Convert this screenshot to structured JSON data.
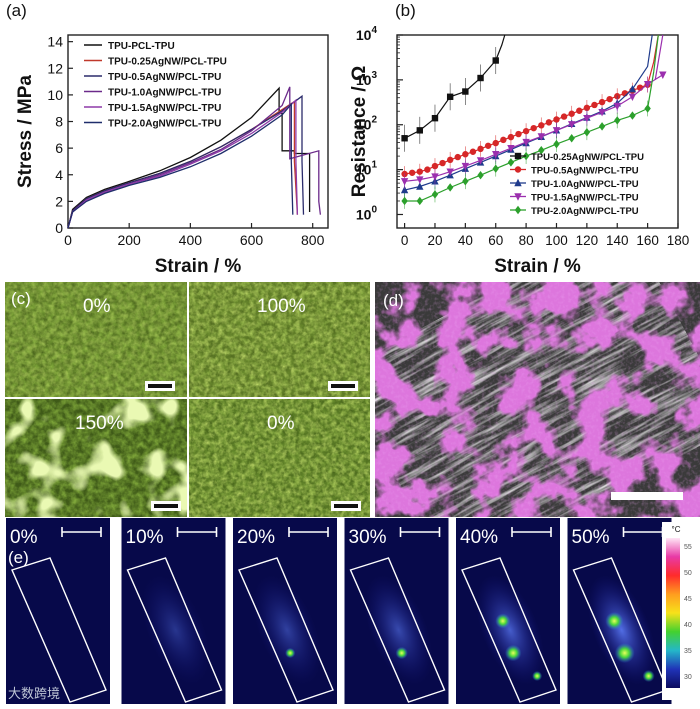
{
  "figure": {
    "panel_labels": [
      "(a)",
      "(b)",
      "(c)",
      "(d)",
      "(e)"
    ],
    "watermark": "大数跨境"
  },
  "chart_data": [
    {
      "type": "line",
      "panel": "(a)",
      "xlabel": "Strain / %",
      "ylabel": "Stress / MPa",
      "xlim": [
        0,
        850
      ],
      "ylim": [
        0,
        14.5
      ],
      "xticks": [
        0,
        200,
        400,
        600,
        800
      ],
      "yticks": [
        0,
        2,
        4,
        6,
        8,
        10,
        12,
        14
      ],
      "legend_position": "top-left",
      "series": [
        {
          "name": "TPU-PCL-TPU",
          "color": "#111111",
          "x": [
            0,
            15,
            60,
            120,
            200,
            300,
            400,
            500,
            600,
            690,
            690,
            700,
            700,
            740,
            740,
            790,
            790
          ],
          "y": [
            0,
            1.4,
            2.3,
            2.9,
            3.5,
            4.3,
            5.3,
            6.6,
            8.3,
            10.5,
            8.6,
            8.6,
            5.8,
            5.8,
            5.6,
            5.6,
            1.2
          ]
        },
        {
          "name": "TPU-0.25AgNW/PCL-TPU",
          "color": "#c0392b",
          "x": [
            0,
            15,
            60,
            120,
            200,
            300,
            400,
            500,
            600,
            740,
            740,
            750
          ],
          "y": [
            0,
            1.3,
            2.2,
            2.8,
            3.4,
            4.1,
            5.0,
            6.1,
            7.4,
            9.5,
            5.0,
            1.0
          ]
        },
        {
          "name": "TPU-0.5AgNW/PCL-TPU",
          "color": "#2b2b6b",
          "x": [
            0,
            15,
            60,
            120,
            200,
            300,
            400,
            500,
            600,
            700,
            765,
            765,
            770
          ],
          "y": [
            0,
            1.3,
            2.2,
            2.8,
            3.4,
            4.1,
            5.0,
            6.1,
            7.4,
            8.8,
            9.9,
            5.0,
            1.0
          ]
        },
        {
          "name": "TPU-1.0AgNW/PCL-TPU",
          "color": "#6b2a8a",
          "x": [
            0,
            15,
            60,
            120,
            200,
            300,
            400,
            500,
            600,
            700,
            725,
            725,
            820,
            820,
            825
          ],
          "y": [
            0,
            1.2,
            2.1,
            2.7,
            3.3,
            4.0,
            4.9,
            5.9,
            7.3,
            9.2,
            10.6,
            5.2,
            5.8,
            2.0,
            1.0
          ]
        },
        {
          "name": "TPU-1.5AgNW/PCL-TPU",
          "color": "#8e3aa8",
          "x": [
            0,
            15,
            60,
            120,
            200,
            300,
            400,
            500,
            600,
            700,
            745,
            745,
            750
          ],
          "y": [
            0,
            1.2,
            2.1,
            2.7,
            3.3,
            3.9,
            4.8,
            5.8,
            7.1,
            8.7,
            9.6,
            5.0,
            1.0
          ]
        },
        {
          "name": "TPU-2.0AgNW/PCL-TPU",
          "color": "#1f2d6b",
          "x": [
            0,
            15,
            60,
            120,
            200,
            300,
            400,
            500,
            600,
            700,
            730,
            730,
            735
          ],
          "y": [
            0,
            1.2,
            2.0,
            2.6,
            3.2,
            3.8,
            4.6,
            5.6,
            6.9,
            8.5,
            9.3,
            5.0,
            1.0
          ]
        }
      ]
    },
    {
      "type": "line",
      "panel": "(b)",
      "xlabel": "Strain / %",
      "ylabel": "Resistance / Ω",
      "yscale": "log",
      "xlim": [
        -5,
        180
      ],
      "ylim": [
        0.5,
        10000
      ],
      "xticks": [
        0,
        20,
        40,
        60,
        80,
        100,
        120,
        140,
        160,
        180
      ],
      "yticks": [
        "10^0",
        "10^1",
        "10^2",
        "10^3",
        "10^4"
      ],
      "legend_position": "bottom-right",
      "series": [
        {
          "name": "TPU-0.25AgNW/PCL-TPU",
          "color": "#111111",
          "marker": "square",
          "x": [
            0,
            10,
            20,
            30,
            40,
            50,
            60
          ],
          "y": [
            50,
            75,
            140,
            420,
            550,
            1100,
            2700
          ],
          "tail_x": [
            60,
            64,
            66
          ],
          "tail_y": [
            2700,
            6000,
            10000
          ]
        },
        {
          "name": "TPU-0.5AgNW/PCL-TPU",
          "color": "#d62728",
          "marker": "circle",
          "x": [
            0,
            5,
            10,
            15,
            20,
            25,
            30,
            35,
            40,
            45,
            50,
            55,
            60,
            65,
            70,
            75,
            80,
            85,
            90,
            95,
            100,
            105,
            110,
            115,
            120,
            125,
            130,
            135,
            140,
            145,
            150,
            155,
            160
          ],
          "y": [
            8,
            8.5,
            9,
            10,
            12,
            14,
            16.5,
            19,
            22,
            25,
            29,
            34,
            39,
            46,
            53,
            62,
            72,
            84,
            97,
            113,
            131,
            152,
            176,
            205,
            238,
            276,
            320,
            372,
            432,
            501,
            580,
            670,
            780
          ],
          "tail_x": [
            160,
            164,
            167
          ],
          "tail_y": [
            780,
            2500,
            10000
          ]
        },
        {
          "name": "TPU-1.0AgNW/PCL-TPU",
          "color": "#1f3b8c",
          "marker": "triangle-up",
          "x": [
            0,
            10,
            20,
            30,
            40,
            50,
            60,
            70,
            80,
            90,
            100,
            110,
            120,
            130,
            140,
            150
          ],
          "y": [
            3.5,
            4.2,
            5.5,
            7.5,
            10.5,
            14.5,
            20,
            28,
            39,
            54,
            75,
            105,
            145,
            200,
            300,
            620
          ],
          "tail_x": [
            150,
            160,
            163
          ],
          "tail_y": [
            620,
            2000,
            10000
          ]
        },
        {
          "name": "TPU-1.5AgNW/PCL-TPU",
          "color": "#9b2fae",
          "marker": "triangle-down",
          "x": [
            0,
            10,
            20,
            30,
            40,
            50,
            60,
            70,
            80,
            90,
            100,
            110,
            120,
            130,
            140,
            150,
            160,
            170
          ],
          "y": [
            5.5,
            6,
            7,
            9,
            12,
            16,
            22,
            30,
            41,
            55,
            75,
            102,
            140,
            190,
            260,
            420,
            800,
            1300
          ],
          "tail_x": [
            165,
            168,
            170
          ],
          "tail_y": [
            1000,
            4000,
            10000
          ]
        },
        {
          "name": "TPU-2.0AgNW/PCL-TPU",
          "color": "#2ca02c",
          "marker": "diamond",
          "x": [
            0,
            10,
            20,
            30,
            40,
            50,
            60,
            70,
            80,
            90,
            100,
            110,
            120,
            130,
            140,
            150,
            160
          ],
          "y": [
            2,
            2,
            2.8,
            4,
            5.5,
            7.5,
            10.5,
            14.5,
            20,
            27,
            37,
            50,
            68,
            92,
            125,
            160,
            230
          ],
          "tail_x": [
            160,
            164,
            167
          ],
          "tail_y": [
            230,
            1500,
            10000
          ]
        }
      ]
    }
  ],
  "panel_c": {
    "tiles": [
      {
        "label": "0%"
      },
      {
        "label": "100%"
      },
      {
        "label": "150%"
      },
      {
        "label": "0%"
      }
    ]
  },
  "panel_e": {
    "strains": [
      "0%",
      "10%",
      "20%",
      "30%",
      "40%",
      "50%"
    ],
    "hot_intensity": [
      0,
      0.12,
      0.3,
      0.45,
      0.75,
      1.0
    ],
    "colorbar": {
      "unit": "°C",
      "ticks": [
        "55",
        "50",
        "45",
        "40",
        "35",
        "30"
      ],
      "colors": [
        "#ffe6f6",
        "#e83aa6",
        "#ff2b2b",
        "#ff9d1f",
        "#f7e21a",
        "#43d12f",
        "#24b7c9",
        "#2033b8",
        "#0b0b5e"
      ]
    }
  }
}
